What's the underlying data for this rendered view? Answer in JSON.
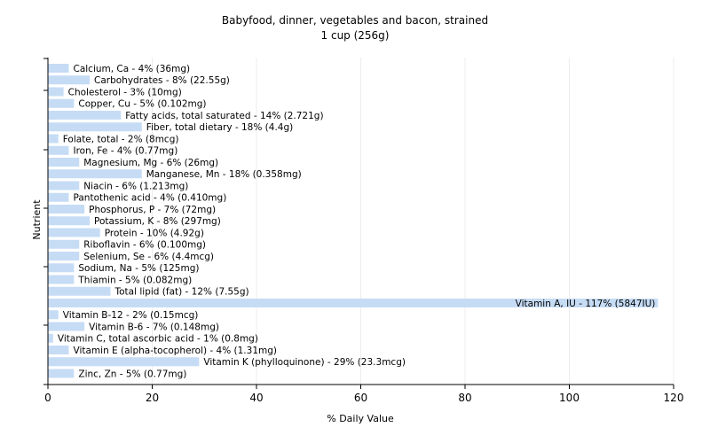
{
  "chart_data": {
    "type": "bar",
    "orientation": "horizontal",
    "title": "Babyfood, dinner, vegetables and bacon, strained",
    "subtitle": "1 cup (256g)",
    "xlabel": "% Daily Value",
    "ylabel": "Nutrient",
    "xlim": [
      0,
      120
    ],
    "x_ticks": [
      "0",
      "20",
      "40",
      "60",
      "80",
      "100",
      "120"
    ],
    "grid": "vertical",
    "bar_color": "#c6dcf5",
    "categories": [
      "Calcium, Ca",
      "Carbohydrates",
      "Cholesterol",
      "Copper, Cu",
      "Fatty acids, total saturated",
      "Fiber, total dietary",
      "Folate, total",
      "Iron, Fe",
      "Magnesium, Mg",
      "Manganese, Mn",
      "Niacin",
      "Pantothenic acid",
      "Phosphorus, P",
      "Potassium, K",
      "Protein",
      "Riboflavin",
      "Selenium, Se",
      "Sodium, Na",
      "Thiamin",
      "Total lipid (fat)",
      "Vitamin A, IU",
      "Vitamin B-12",
      "Vitamin B-6",
      "Vitamin C, total ascorbic acid",
      "Vitamin E (alpha-tocopherol)",
      "Vitamin K (phylloquinone)",
      "Zinc, Zn"
    ],
    "values": [
      4,
      8,
      3,
      5,
      14,
      18,
      2,
      4,
      6,
      18,
      6,
      4,
      7,
      8,
      10,
      6,
      6,
      5,
      5,
      12,
      117,
      2,
      7,
      1,
      4,
      29,
      5
    ],
    "labels": [
      "Calcium, Ca - 4% (36mg)",
      "Carbohydrates - 8% (22.55g)",
      "Cholesterol - 3% (10mg)",
      "Copper, Cu - 5% (0.102mg)",
      "Fatty acids, total saturated - 14% (2.721g)",
      "Fiber, total dietary - 18% (4.4g)",
      "Folate, total - 2% (8mcg)",
      "Iron, Fe - 4% (0.77mg)",
      "Magnesium, Mg - 6% (26mg)",
      "Manganese, Mn - 18% (0.358mg)",
      "Niacin - 6% (1.213mg)",
      "Pantothenic acid - 4% (0.410mg)",
      "Phosphorus, P - 7% (72mg)",
      "Potassium, K - 8% (297mg)",
      "Protein - 10% (4.92g)",
      "Riboflavin - 6% (0.100mg)",
      "Selenium, Se - 6% (4.4mcg)",
      "Sodium, Na - 5% (125mg)",
      "Thiamin - 5% (0.082mg)",
      "Total lipid (fat) - 12% (7.55g)",
      "Vitamin A, IU - 117% (5847IU)",
      "Vitamin B-12 - 2% (0.15mcg)",
      "Vitamin B-6 - 7% (0.148mg)",
      "Vitamin C, total ascorbic acid - 1% (0.8mg)",
      "Vitamin E (alpha-tocopherol) - 4% (1.31mg)",
      "Vitamin K (phylloquinone) - 29% (23.3mcg)",
      "Zinc, Zn - 5% (0.77mg)"
    ]
  }
}
